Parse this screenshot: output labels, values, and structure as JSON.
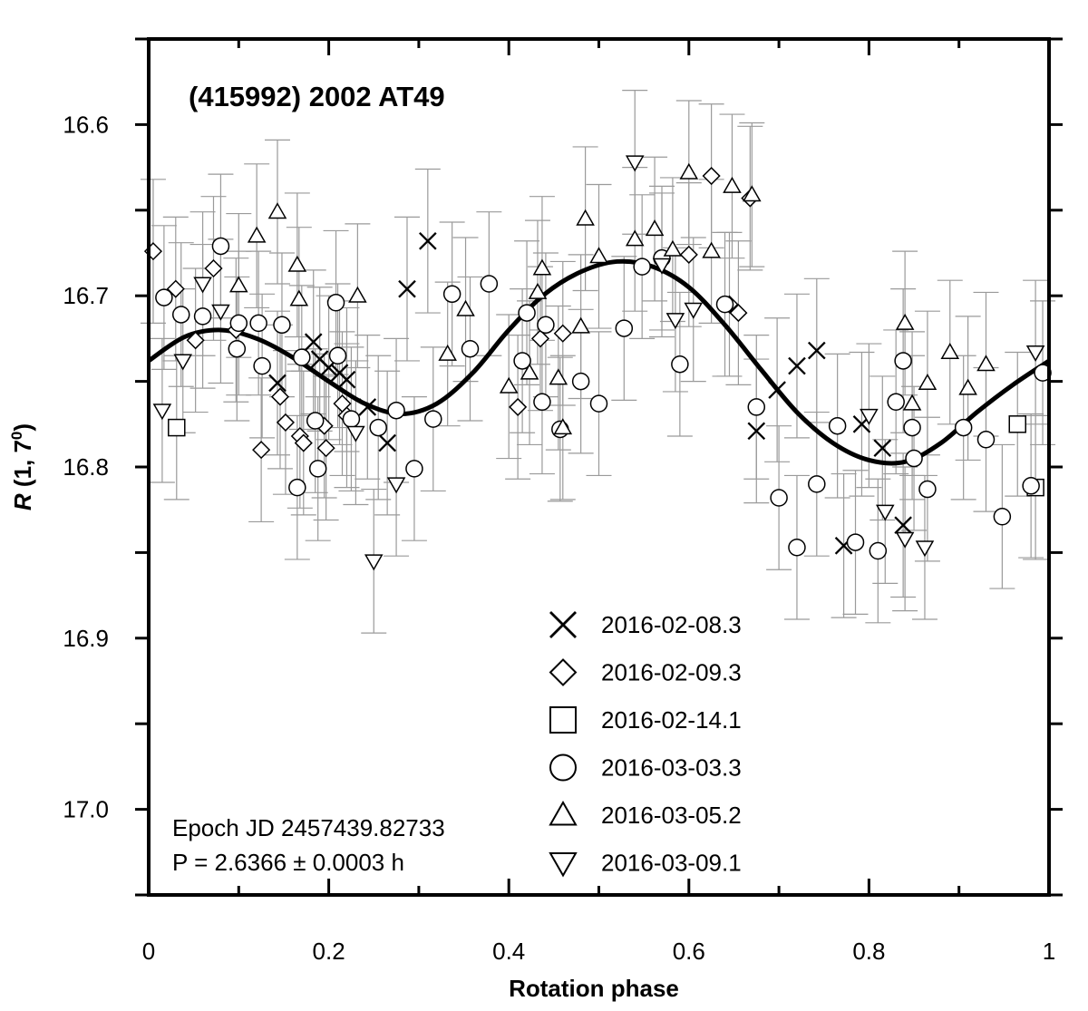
{
  "chart_data": {
    "type": "scatter",
    "title": "(415992) 2002 AT49",
    "xlabel": "Rotation phase",
    "ylabel_main": "R",
    "ylabel_rest": " (1, 7",
    "ylabel_sup": "0",
    "ylabel_close": ")",
    "xlim": [
      0,
      1
    ],
    "ylim": [
      17.05,
      16.55
    ],
    "y_inverted": true,
    "x_ticks": [
      0,
      0.2,
      0.4,
      0.6,
      0.8,
      1
    ],
    "x_tick_labels": [
      "0",
      "0.2",
      "0.4",
      "0.6",
      "0.8",
      "1"
    ],
    "y_ticks": [
      16.6,
      16.7,
      16.8,
      16.9,
      17.0
    ],
    "y_tick_labels": [
      "16.6",
      "16.7",
      "16.8",
      "16.9",
      "17.0"
    ],
    "annotation_lines": [
      "Epoch JD 2457439.82733",
      "P = 2.6366 ± 0.0003 h"
    ],
    "legend_position": "bottom-right",
    "fit_curve": [
      [
        0.0,
        16.738
      ],
      [
        0.04,
        16.724
      ],
      [
        0.08,
        16.72
      ],
      [
        0.12,
        16.725
      ],
      [
        0.16,
        16.736
      ],
      [
        0.2,
        16.75
      ],
      [
        0.24,
        16.763
      ],
      [
        0.28,
        16.769
      ],
      [
        0.32,
        16.763
      ],
      [
        0.36,
        16.745
      ],
      [
        0.4,
        16.72
      ],
      [
        0.44,
        16.699
      ],
      [
        0.48,
        16.686
      ],
      [
        0.52,
        16.68
      ],
      [
        0.56,
        16.683
      ],
      [
        0.6,
        16.695
      ],
      [
        0.64,
        16.717
      ],
      [
        0.68,
        16.743
      ],
      [
        0.72,
        16.768
      ],
      [
        0.76,
        16.786
      ],
      [
        0.8,
        16.796
      ],
      [
        0.84,
        16.797
      ],
      [
        0.88,
        16.786
      ],
      [
        0.92,
        16.768
      ],
      [
        0.96,
        16.752
      ],
      [
        1.0,
        16.738
      ]
    ],
    "series": [
      {
        "name": "2016-02-08.3",
        "marker": "x",
        "points": [
          [
            0.143,
            16.751
          ],
          [
            0.183,
            16.727
          ],
          [
            0.19,
            16.737
          ],
          [
            0.2,
            16.742
          ],
          [
            0.212,
            16.745
          ],
          [
            0.22,
            16.749
          ],
          [
            0.243,
            16.765
          ],
          [
            0.265,
            16.786
          ],
          [
            0.287,
            16.696
          ],
          [
            0.31,
            16.668
          ],
          [
            0.675,
            16.779
          ],
          [
            0.698,
            16.755
          ],
          [
            0.72,
            16.741
          ],
          [
            0.742,
            16.732
          ],
          [
            0.772,
            16.846
          ],
          [
            0.792,
            16.775
          ],
          [
            0.815,
            16.789
          ],
          [
            0.838,
            16.834
          ]
        ]
      },
      {
        "name": "2016-02-09.3",
        "marker": "diamond",
        "points": [
          [
            0.005,
            16.674
          ],
          [
            0.03,
            16.696
          ],
          [
            0.052,
            16.726
          ],
          [
            0.072,
            16.684
          ],
          [
            0.097,
            16.72
          ],
          [
            0.125,
            16.79
          ],
          [
            0.146,
            16.759
          ],
          [
            0.152,
            16.774
          ],
          [
            0.168,
            16.782
          ],
          [
            0.172,
            16.786
          ],
          [
            0.195,
            16.776
          ],
          [
            0.197,
            16.789
          ],
          [
            0.215,
            16.763
          ],
          [
            0.22,
            16.77
          ],
          [
            0.41,
            16.765
          ],
          [
            0.435,
            16.725
          ],
          [
            0.46,
            16.722
          ],
          [
            0.6,
            16.676
          ],
          [
            0.625,
            16.63
          ],
          [
            0.645,
            16.705
          ],
          [
            0.655,
            16.71
          ],
          [
            0.668,
            16.643
          ]
        ]
      },
      {
        "name": "2016-02-14.1",
        "marker": "square",
        "points": [
          [
            0.031,
            16.777
          ],
          [
            0.965,
            16.775
          ],
          [
            0.985,
            16.812
          ]
        ]
      },
      {
        "name": "2016-03-03.3",
        "marker": "circle",
        "points": [
          [
            0.017,
            16.701
          ],
          [
            0.036,
            16.711
          ],
          [
            0.06,
            16.712
          ],
          [
            0.08,
            16.671
          ],
          [
            0.098,
            16.731
          ],
          [
            0.1,
            16.716
          ],
          [
            0.122,
            16.716
          ],
          [
            0.126,
            16.741
          ],
          [
            0.148,
            16.717
          ],
          [
            0.165,
            16.812
          ],
          [
            0.17,
            16.736
          ],
          [
            0.185,
            16.773
          ],
          [
            0.188,
            16.801
          ],
          [
            0.208,
            16.704
          ],
          [
            0.21,
            16.735
          ],
          [
            0.225,
            16.772
          ],
          [
            0.255,
            16.777
          ],
          [
            0.275,
            16.767
          ],
          [
            0.295,
            16.801
          ],
          [
            0.316,
            16.772
          ],
          [
            0.337,
            16.699
          ],
          [
            0.357,
            16.731
          ],
          [
            0.378,
            16.693
          ],
          [
            0.415,
            16.738
          ],
          [
            0.42,
            16.71
          ],
          [
            0.437,
            16.762
          ],
          [
            0.441,
            16.717
          ],
          [
            0.457,
            16.778
          ],
          [
            0.48,
            16.75
          ],
          [
            0.5,
            16.763
          ],
          [
            0.528,
            16.719
          ],
          [
            0.548,
            16.683
          ],
          [
            0.57,
            16.678
          ],
          [
            0.59,
            16.74
          ],
          [
            0.64,
            16.705
          ],
          [
            0.675,
            16.765
          ],
          [
            0.7,
            16.818
          ],
          [
            0.72,
            16.847
          ],
          [
            0.742,
            16.81
          ],
          [
            0.765,
            16.776
          ],
          [
            0.785,
            16.844
          ],
          [
            0.81,
            16.849
          ],
          [
            0.83,
            16.762
          ],
          [
            0.838,
            16.738
          ],
          [
            0.848,
            16.777
          ],
          [
            0.85,
            16.795
          ],
          [
            0.865,
            16.813
          ],
          [
            0.905,
            16.777
          ],
          [
            0.93,
            16.784
          ],
          [
            0.948,
            16.829
          ],
          [
            0.98,
            16.811
          ],
          [
            0.993,
            16.745
          ]
        ]
      },
      {
        "name": "2016-03-05.2",
        "marker": "triangle-up",
        "points": [
          [
            0.1,
            16.694
          ],
          [
            0.12,
            16.665
          ],
          [
            0.143,
            16.651
          ],
          [
            0.165,
            16.682
          ],
          [
            0.167,
            16.702
          ],
          [
            0.232,
            16.7
          ],
          [
            0.332,
            16.734
          ],
          [
            0.352,
            16.708
          ],
          [
            0.4,
            16.753
          ],
          [
            0.423,
            16.745
          ],
          [
            0.432,
            16.698
          ],
          [
            0.437,
            16.684
          ],
          [
            0.455,
            16.748
          ],
          [
            0.46,
            16.777
          ],
          [
            0.48,
            16.718
          ],
          [
            0.485,
            16.655
          ],
          [
            0.5,
            16.677
          ],
          [
            0.54,
            16.667
          ],
          [
            0.562,
            16.661
          ],
          [
            0.582,
            16.673
          ],
          [
            0.6,
            16.628
          ],
          [
            0.625,
            16.674
          ],
          [
            0.648,
            16.636
          ],
          [
            0.67,
            16.641
          ],
          [
            0.84,
            16.716
          ],
          [
            0.848,
            16.763
          ],
          [
            0.865,
            16.751
          ],
          [
            0.89,
            16.733
          ],
          [
            0.91,
            16.754
          ],
          [
            0.93,
            16.74
          ]
        ]
      },
      {
        "name": "2016-03-09.1",
        "marker": "triangle-down",
        "points": [
          [
            0.015,
            16.767
          ],
          [
            0.038,
            16.738
          ],
          [
            0.06,
            16.693
          ],
          [
            0.08,
            16.709
          ],
          [
            0.23,
            16.78
          ],
          [
            0.275,
            16.81
          ],
          [
            0.25,
            16.855
          ],
          [
            0.54,
            16.622
          ],
          [
            0.57,
            16.682
          ],
          [
            0.585,
            16.714
          ],
          [
            0.605,
            16.708
          ],
          [
            0.8,
            16.77
          ],
          [
            0.818,
            16.826
          ],
          [
            0.84,
            16.842
          ],
          [
            0.862,
            16.847
          ],
          [
            0.985,
            16.733
          ]
        ]
      }
    ]
  }
}
